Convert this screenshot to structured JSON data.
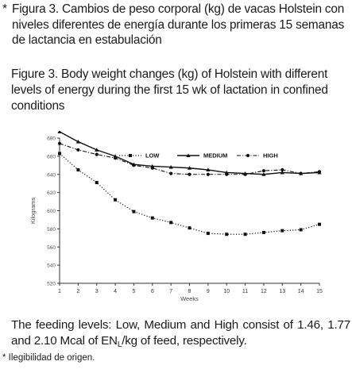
{
  "caption_es": {
    "asterisk": "*",
    "text": "Figura 3. Cambios de peso corporal (kg) de vacas Holstein con niveles diferentes de energía durante los primeras 15 semanas de lactancia en estabulación"
  },
  "caption_en": "Figure 3. Body weight changes (kg) of Holstein with different levels of energy during the first 15 wk of lactation in confined conditions",
  "chart_data": {
    "type": "line",
    "title": "",
    "xlabel": "Weeks",
    "ylabel": "Kilograms",
    "x": [
      1,
      2,
      3,
      4,
      5,
      6,
      7,
      8,
      9,
      10,
      11,
      12,
      13,
      14,
      15
    ],
    "xlim": [
      1,
      15
    ],
    "ylim": [
      520,
      680
    ],
    "yticks": [
      520,
      540,
      560,
      580,
      600,
      620,
      640,
      660,
      680
    ],
    "grid": false,
    "legend_position": "top-center",
    "series": [
      {
        "name": "LOW",
        "style": "dotted-square",
        "values": [
          663,
          645,
          631,
          612,
          599,
          592,
          587,
          581,
          575,
          574,
          574,
          576,
          578,
          579,
          585
        ]
      },
      {
        "name": "MEDIUM",
        "style": "solid-triangle",
        "values": [
          687,
          676,
          667,
          660,
          651,
          649,
          648,
          647,
          645,
          642,
          641,
          640,
          642,
          641,
          642
        ]
      },
      {
        "name": "HIGH",
        "style": "dashdot-circle",
        "values": [
          674,
          667,
          662,
          658,
          650,
          647,
          641,
          640,
          640,
          640,
          640,
          644,
          645,
          641,
          643
        ]
      }
    ]
  },
  "footnote_en": {
    "pre": "The feeding levels: Low, Medium and High consist of 1.46, 1.77 and 2.10 Mcal of EN",
    "sub": "L",
    "post": "/kg of feed, respectively."
  },
  "note": "* Ilegibilidad de origen."
}
